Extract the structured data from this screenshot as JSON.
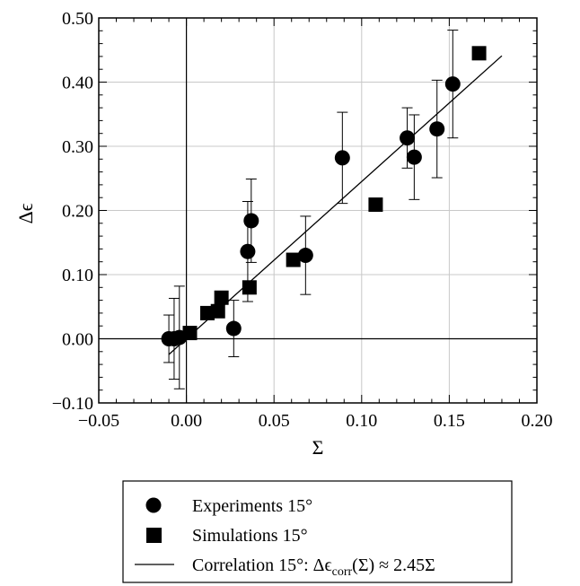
{
  "chart_data": {
    "type": "scatter",
    "xlabel": "Σ",
    "ylabel": "Δϵ",
    "xlim": [
      -0.05,
      0.2
    ],
    "ylim": [
      -0.1,
      0.5
    ],
    "x_ticks": [
      "−0.05",
      "0.00",
      "0.05",
      "0.10",
      "0.15",
      "0.20"
    ],
    "y_ticks": [
      "−0.10",
      "0.00",
      "0.10",
      "0.20",
      "0.30",
      "0.40",
      "0.50"
    ],
    "grid": true,
    "legend_position": "below",
    "series": [
      {
        "name": "Experiments 15°",
        "marker": "circle",
        "points": [
          {
            "x": -0.01,
            "y": 0.0,
            "err": 0.037
          },
          {
            "x": -0.007,
            "y": 0.0,
            "err": 0.063
          },
          {
            "x": -0.004,
            "y": 0.002,
            "err": 0.08
          },
          {
            "x": 0.027,
            "y": 0.016,
            "err": 0.044
          },
          {
            "x": 0.035,
            "y": 0.136,
            "err": 0.078
          },
          {
            "x": 0.037,
            "y": 0.184,
            "err": 0.065
          },
          {
            "x": 0.068,
            "y": 0.13,
            "err": 0.061
          },
          {
            "x": 0.089,
            "y": 0.282,
            "err": 0.071
          },
          {
            "x": 0.126,
            "y": 0.313,
            "err": 0.047
          },
          {
            "x": 0.13,
            "y": 0.283,
            "err": 0.066
          },
          {
            "x": 0.143,
            "y": 0.327,
            "err": 0.076
          },
          {
            "x": 0.152,
            "y": 0.397,
            "err": 0.084
          }
        ]
      },
      {
        "name": "Simulations 15°",
        "marker": "square",
        "points": [
          {
            "x": 0.002,
            "y": 0.009
          },
          {
            "x": 0.012,
            "y": 0.04
          },
          {
            "x": 0.018,
            "y": 0.043
          },
          {
            "x": 0.02,
            "y": 0.064
          },
          {
            "x": 0.036,
            "y": 0.08
          },
          {
            "x": 0.061,
            "y": 0.123
          },
          {
            "x": 0.108,
            "y": 0.209
          },
          {
            "x": 0.167,
            "y": 0.445
          }
        ]
      },
      {
        "name": "Correlation 15°: Δϵ",
        "name_subscript": "corr",
        "name_suffix": "(Σ) ≈ 2.45Σ",
        "type": "line",
        "x": [
          -0.01,
          0.18
        ],
        "y": [
          -0.0245,
          0.441
        ]
      }
    ]
  }
}
